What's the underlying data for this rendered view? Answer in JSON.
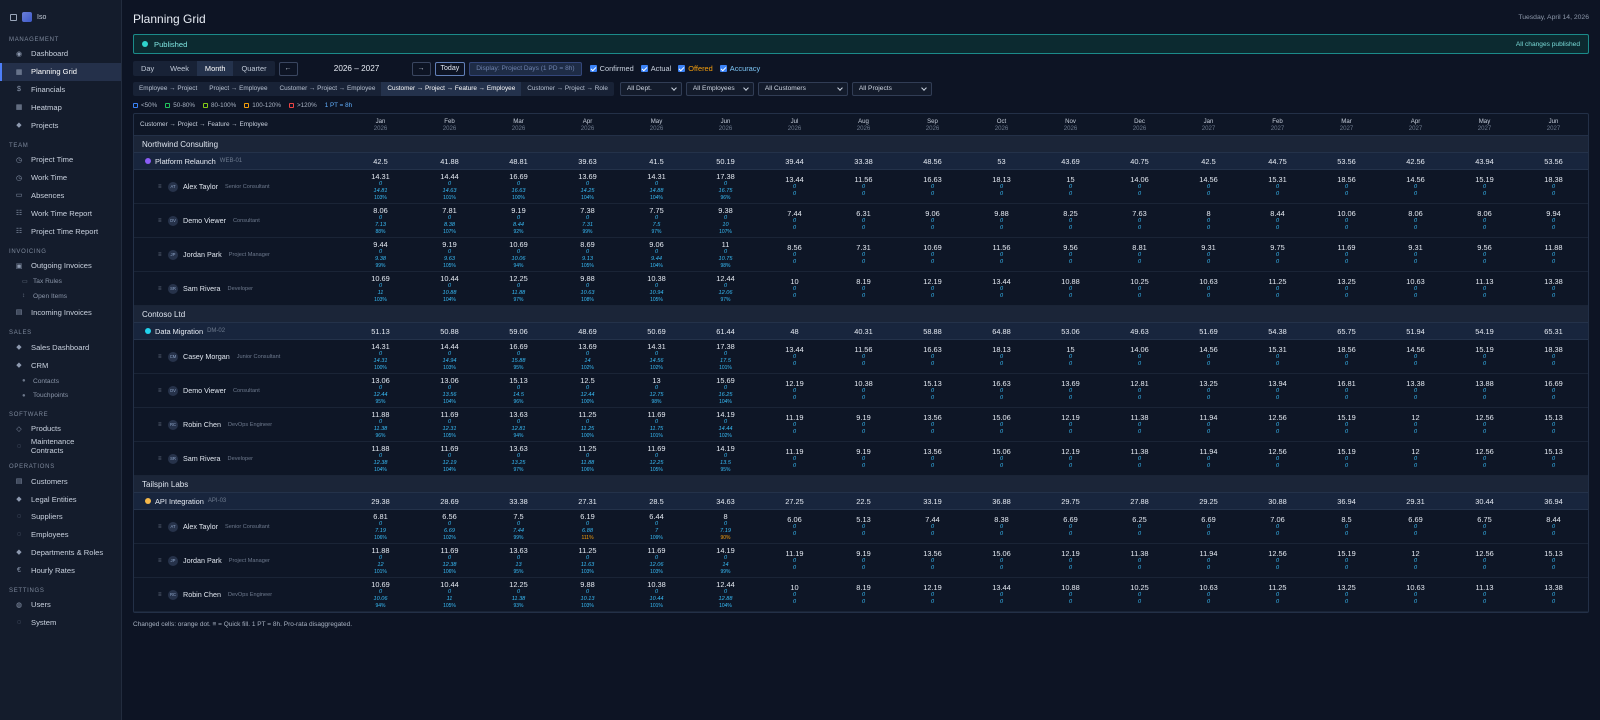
{
  "sidebar": {
    "brand": "Iso",
    "sections": [
      {
        "title": "MANAGEMENT",
        "items": [
          {
            "label": "Dashboard",
            "icon": "◉"
          },
          {
            "label": "Planning Grid",
            "icon": "▦",
            "active": true
          },
          {
            "label": "Financials",
            "icon": "$"
          },
          {
            "label": "Heatmap",
            "icon": "▦"
          },
          {
            "label": "Projects",
            "icon": "◆"
          }
        ]
      },
      {
        "title": "TEAM",
        "items": [
          {
            "label": "Project Time",
            "icon": "◷"
          },
          {
            "label": "Work Time",
            "icon": "◷"
          },
          {
            "label": "Absences",
            "icon": "▭"
          },
          {
            "label": "Work Time Report",
            "icon": "☷"
          },
          {
            "label": "Project Time Report",
            "icon": "☷"
          }
        ]
      },
      {
        "title": "INVOICING",
        "items": [
          {
            "label": "Outgoing Invoices",
            "icon": "▣",
            "children": [
              {
                "label": "Tax Rules",
                "icon": "▭"
              },
              {
                "label": "Open Items",
                "icon": "↕"
              }
            ]
          },
          {
            "label": "Incoming Invoices",
            "icon": "▤"
          }
        ]
      },
      {
        "title": "SALES",
        "items": [
          {
            "label": "Sales Dashboard",
            "icon": "◆"
          },
          {
            "label": "CRM",
            "icon": "◆",
            "children": [
              {
                "label": "Contacts",
                "icon": "●"
              },
              {
                "label": "Touchpoints",
                "icon": "●"
              }
            ]
          }
        ]
      },
      {
        "title": "SOFTWARE",
        "items": [
          {
            "label": "Products",
            "icon": "◇"
          },
          {
            "label": "Maintenance Contracts",
            "icon": "◌"
          }
        ]
      },
      {
        "title": "OPERATIONS",
        "items": [
          {
            "label": "Customers",
            "icon": "▤"
          },
          {
            "label": "Legal Entities",
            "icon": "◆"
          },
          {
            "label": "Suppliers",
            "icon": "◌"
          },
          {
            "label": "Employees",
            "icon": "◌"
          },
          {
            "label": "Departments & Roles",
            "icon": "◆"
          },
          {
            "label": "Hourly Rates",
            "icon": "€"
          }
        ]
      },
      {
        "title": "SETTINGS",
        "items": [
          {
            "label": "Users",
            "icon": "◍"
          },
          {
            "label": "System",
            "icon": "◌"
          }
        ]
      }
    ]
  },
  "page": {
    "title": "Planning Grid",
    "date": "Tuesday, April 14, 2026"
  },
  "status": {
    "label": "Published",
    "note": "All changes published",
    "color": "#2fd3cc"
  },
  "toolbar": {
    "views": [
      "Day",
      "Week",
      "Month",
      "Quarter"
    ],
    "active_view": "Month",
    "prev": "←",
    "range": "2026 – 2027",
    "next": "→",
    "today": "Today",
    "display": "Display: Project Days (1 PD = 8h)",
    "checks": [
      "Confirmed",
      "Actual",
      "Offered",
      "Accuracy"
    ]
  },
  "groupings": [
    "Employee → Project",
    "Project → Employee",
    "Customer → Project → Employee",
    "Customer → Project → Feature → Employee",
    "Customer → Project → Role"
  ],
  "active_grouping": "Customer → Project → Feature → Employee",
  "filters": [
    "All Dept.",
    "All Employees",
    "All Customers",
    "All Projects"
  ],
  "legend": [
    {
      "label": "<50%",
      "color": "#3b82f6"
    },
    {
      "label": "50-80%",
      "color": "#22c55e"
    },
    {
      "label": "80-100%",
      "color": "#84cc16"
    },
    {
      "label": "100-120%",
      "color": "#f59e0b"
    },
    {
      "label": ">120%",
      "color": "#ef4444"
    }
  ],
  "scale_note": "1 PT = 8h",
  "grid": {
    "header_label": "Customer → Project → Feature → Employee",
    "months": [
      {
        "m": "Jan",
        "y": "2026"
      },
      {
        "m": "Feb",
        "y": "2026"
      },
      {
        "m": "Mar",
        "y": "2026"
      },
      {
        "m": "Apr",
        "y": "2026"
      },
      {
        "m": "May",
        "y": "2026"
      },
      {
        "m": "Jun",
        "y": "2026"
      },
      {
        "m": "Jul",
        "y": "2026"
      },
      {
        "m": "Aug",
        "y": "2026"
      },
      {
        "m": "Sep",
        "y": "2026"
      },
      {
        "m": "Oct",
        "y": "2026"
      },
      {
        "m": "Nov",
        "y": "2026"
      },
      {
        "m": "Dec",
        "y": "2026"
      },
      {
        "m": "Jan",
        "y": "2027"
      },
      {
        "m": "Feb",
        "y": "2027"
      },
      {
        "m": "Mar",
        "y": "2027"
      },
      {
        "m": "Apr",
        "y": "2027"
      },
      {
        "m": "May",
        "y": "2027"
      },
      {
        "m": "Jun",
        "y": "2027"
      }
    ],
    "customers": [
      {
        "name": "Northwind Consulting",
        "projects": [
          {
            "name": "Platform Relaunch",
            "code": "WEB-01",
            "color": "#8b5cf6",
            "totals": [
              "42.5",
              "41.88",
              "48.81",
              "39.63",
              "41.5",
              "50.19",
              "39.44",
              "33.38",
              "48.56",
              "53",
              "43.69",
              "40.75",
              "42.5",
              "44.75",
              "53.56",
              "42.56",
              "43.94",
              "53.56"
            ],
            "employees": [
              {
                "ini": "AT",
                "name": "Alex Taylor",
                "role": "Senior Consultant",
                "v": [
                  "14.31",
                  "14.44",
                  "16.69",
                  "13.69",
                  "14.31",
                  "17.38",
                  "13.44",
                  "11.56",
                  "16.63",
                  "18.13",
                  "15",
                  "14.06",
                  "14.56",
                  "15.31",
                  "18.56",
                  "14.56",
                  "15.19",
                  "18.38"
                ],
                "act": [
                  "14.81",
                  "14.63",
                  "16.63",
                  "14.25",
                  "14.88",
                  "16.75"
                ],
                "pct": [
                  "103%",
                  "101%",
                  "100%",
                  "104%",
                  "104%",
                  "96%"
                ]
              },
              {
                "ini": "DV",
                "name": "Demo Viewer",
                "role": "Consultant",
                "v": [
                  "8.06",
                  "7.81",
                  "9.19",
                  "7.38",
                  "7.75",
                  "9.38",
                  "7.44",
                  "6.31",
                  "9.06",
                  "9.88",
                  "8.25",
                  "7.63",
                  "8",
                  "8.44",
                  "10.06",
                  "8.06",
                  "8.06",
                  "9.94"
                ],
                "act": [
                  "7.13",
                  "8.38",
                  "8.44",
                  "7.31",
                  "7.5",
                  "10"
                ],
                "pct": [
                  "88%",
                  "107%",
                  "92%",
                  "99%",
                  "97%",
                  "107%"
                ]
              },
              {
                "ini": "JP",
                "name": "Jordan Park",
                "role": "Project Manager",
                "v": [
                  "9.44",
                  "9.19",
                  "10.69",
                  "8.69",
                  "9.06",
                  "11",
                  "8.56",
                  "7.31",
                  "10.69",
                  "11.56",
                  "9.56",
                  "8.81",
                  "9.31",
                  "9.75",
                  "11.69",
                  "9.31",
                  "9.56",
                  "11.88"
                ],
                "act": [
                  "9.38",
                  "9.63",
                  "10.06",
                  "9.13",
                  "9.44",
                  "10.75"
                ],
                "pct": [
                  "99%",
                  "105%",
                  "94%",
                  "105%",
                  "104%",
                  "98%"
                ]
              },
              {
                "ini": "SR",
                "name": "Sam Rivera",
                "role": "Developer",
                "v": [
                  "10.69",
                  "10.44",
                  "12.25",
                  "9.88",
                  "10.38",
                  "12.44",
                  "10",
                  "8.19",
                  "12.19",
                  "13.44",
                  "10.88",
                  "10.25",
                  "10.63",
                  "11.25",
                  "13.25",
                  "10.63",
                  "11.13",
                  "13.38"
                ],
                "act": [
                  "11",
                  "10.88",
                  "11.88",
                  "10.63",
                  "10.94",
                  "12.06"
                ],
                "pct": [
                  "103%",
                  "104%",
                  "97%",
                  "108%",
                  "105%",
                  "97%"
                ]
              }
            ]
          }
        ]
      },
      {
        "name": "Contoso Ltd",
        "projects": [
          {
            "name": "Data Migration",
            "code": "DM-02",
            "color": "#22d3ee",
            "totals": [
              "51.13",
              "50.88",
              "59.06",
              "48.69",
              "50.69",
              "61.44",
              "48",
              "40.31",
              "58.88",
              "64.88",
              "53.06",
              "49.63",
              "51.69",
              "54.38",
              "65.75",
              "51.94",
              "54.19",
              "65.31"
            ],
            "employees": [
              {
                "ini": "CM",
                "name": "Casey Morgan",
                "role": "Junior Consultant",
                "v": [
                  "14.31",
                  "14.44",
                  "16.69",
                  "13.69",
                  "14.31",
                  "17.38",
                  "13.44",
                  "11.56",
                  "16.63",
                  "18.13",
                  "15",
                  "14.06",
                  "14.56",
                  "15.31",
                  "18.56",
                  "14.56",
                  "15.19",
                  "18.38"
                ],
                "act": [
                  "14.31",
                  "14.94",
                  "15.88",
                  "14",
                  "14.56",
                  "17.5"
                ],
                "pct": [
                  "100%",
                  "103%",
                  "95%",
                  "102%",
                  "102%",
                  "101%"
                ]
              },
              {
                "ini": "DV",
                "name": "Demo Viewer",
                "role": "Consultant",
                "v": [
                  "13.06",
                  "13.06",
                  "15.13",
                  "12.5",
                  "13",
                  "15.69",
                  "12.19",
                  "10.38",
                  "15.13",
                  "16.63",
                  "13.69",
                  "12.81",
                  "13.25",
                  "13.94",
                  "16.81",
                  "13.38",
                  "13.88",
                  "16.69"
                ],
                "act": [
                  "12.44",
                  "13.56",
                  "14.5",
                  "12.44",
                  "12.75",
                  "16.25"
                ],
                "pct": [
                  "95%",
                  "104%",
                  "96%",
                  "100%",
                  "98%",
                  "104%"
                ]
              },
              {
                "ini": "RC",
                "name": "Robin Chen",
                "role": "DevOps Engineer",
                "v": [
                  "11.88",
                  "11.69",
                  "13.63",
                  "11.25",
                  "11.69",
                  "14.19",
                  "11.19",
                  "9.19",
                  "13.56",
                  "15.06",
                  "12.19",
                  "11.38",
                  "11.94",
                  "12.56",
                  "15.19",
                  "12",
                  "12.56",
                  "15.13"
                ],
                "act": [
                  "11.38",
                  "12.31",
                  "12.81",
                  "11.25",
                  "11.75",
                  "14.44"
                ],
                "pct": [
                  "96%",
                  "105%",
                  "94%",
                  "100%",
                  "101%",
                  "102%"
                ]
              },
              {
                "ini": "SR",
                "name": "Sam Rivera",
                "role": "Developer",
                "v": [
                  "11.88",
                  "11.69",
                  "13.63",
                  "11.25",
                  "11.69",
                  "14.19",
                  "11.19",
                  "9.19",
                  "13.56",
                  "15.06",
                  "12.19",
                  "11.38",
                  "11.94",
                  "12.56",
                  "15.19",
                  "12",
                  "12.56",
                  "15.13"
                ],
                "act": [
                  "12.38",
                  "12.19",
                  "13.25",
                  "11.88",
                  "12.25",
                  "13.5"
                ],
                "pct": [
                  "104%",
                  "104%",
                  "97%",
                  "106%",
                  "105%",
                  "95%"
                ]
              }
            ]
          }
        ]
      },
      {
        "name": "Tailspin Labs",
        "projects": [
          {
            "name": "API Integration",
            "code": "API-03",
            "color": "#f5b84a",
            "totals": [
              "29.38",
              "28.69",
              "33.38",
              "27.31",
              "28.5",
              "34.63",
              "27.25",
              "22.5",
              "33.19",
              "36.88",
              "29.75",
              "27.88",
              "29.25",
              "30.88",
              "36.94",
              "29.31",
              "30.44",
              "36.94"
            ],
            "employees": [
              {
                "ini": "AT",
                "name": "Alex Taylor",
                "role": "Senior Consultant",
                "v": [
                  "6.81",
                  "6.56",
                  "7.5",
                  "6.19",
                  "6.44",
                  "8",
                  "6.06",
                  "5.13",
                  "7.44",
                  "8.38",
                  "6.69",
                  "6.25",
                  "6.69",
                  "7.06",
                  "8.5",
                  "6.69",
                  "6.75",
                  "8.44"
                ],
                "act": [
                  "7.19",
                  "6.69",
                  "7.44",
                  "6.88",
                  "7",
                  "7.19"
                ],
                "pct": [
                  "106%",
                  "102%",
                  "99%",
                  "111%",
                  "109%",
                  "90%"
                ],
                "warn": [
                  3,
                  5
                ]
              },
              {
                "ini": "JP",
                "name": "Jordan Park",
                "role": "Project Manager",
                "v": [
                  "11.88",
                  "11.69",
                  "13.63",
                  "11.25",
                  "11.69",
                  "14.19",
                  "11.19",
                  "9.19",
                  "13.56",
                  "15.06",
                  "12.19",
                  "11.38",
                  "11.94",
                  "12.56",
                  "15.19",
                  "12",
                  "12.56",
                  "15.13"
                ],
                "act": [
                  "12",
                  "12.38",
                  "13",
                  "11.63",
                  "12.06",
                  "14"
                ],
                "pct": [
                  "101%",
                  "106%",
                  "95%",
                  "103%",
                  "103%",
                  "99%"
                ]
              },
              {
                "ini": "RC",
                "name": "Robin Chen",
                "role": "DevOps Engineer",
                "v": [
                  "10.69",
                  "10.44",
                  "12.25",
                  "9.88",
                  "10.38",
                  "12.44",
                  "10",
                  "8.19",
                  "12.19",
                  "13.44",
                  "10.88",
                  "10.25",
                  "10.63",
                  "11.25",
                  "13.25",
                  "10.63",
                  "11.13",
                  "13.38"
                ],
                "act": [
                  "10.06",
                  "11",
                  "11.38",
                  "10.13",
                  "10.44",
                  "12.88"
                ],
                "pct": [
                  "94%",
                  "105%",
                  "93%",
                  "103%",
                  "101%",
                  "104%"
                ]
              }
            ]
          }
        ]
      }
    ]
  },
  "footnote": "Changed cells: orange dot. ≡ = Quick fill. 1 PT = 8h. Pro-rata disaggregated."
}
